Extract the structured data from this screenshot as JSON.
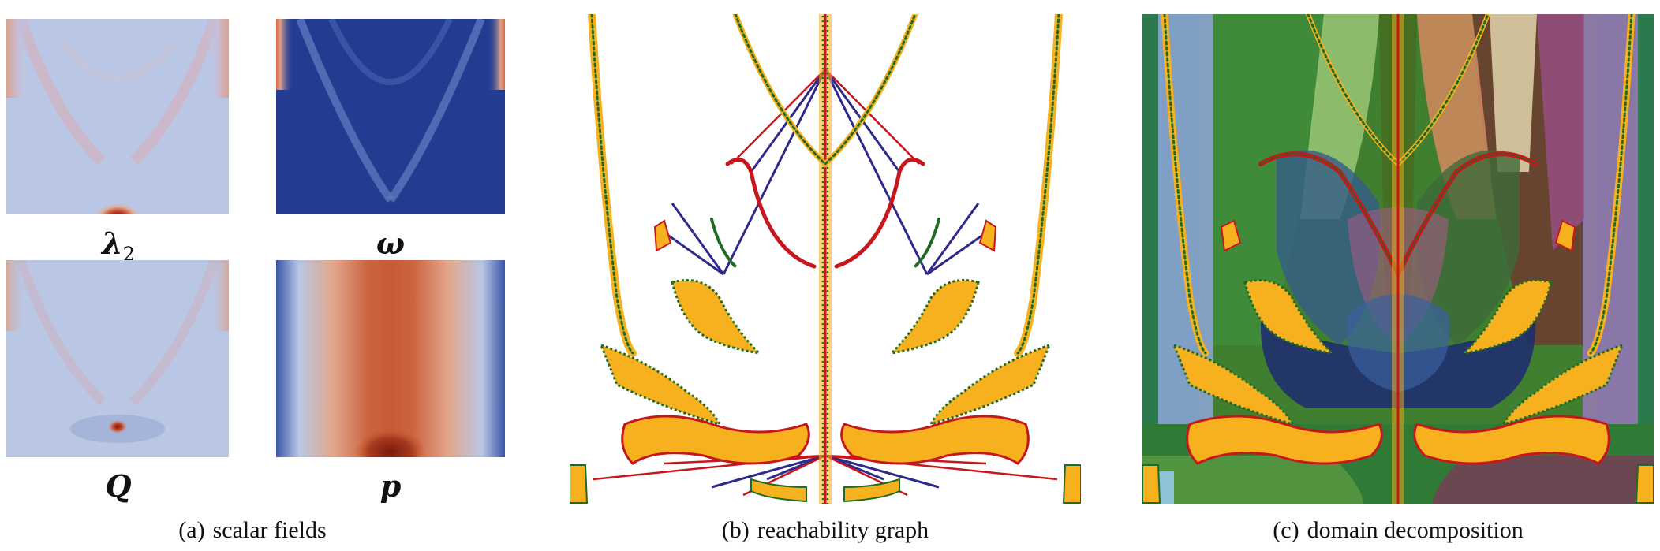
{
  "panels": {
    "a": {
      "tag": "(a)",
      "caption": "scalar fields",
      "fields": [
        {
          "symbol": "λ",
          "subscript": "2"
        },
        {
          "symbol": "ω",
          "subscript": ""
        },
        {
          "symbol": "Q",
          "subscript": ""
        },
        {
          "symbol": "p",
          "subscript": ""
        }
      ]
    },
    "b": {
      "tag": "(b)",
      "caption": "reachability graph"
    },
    "c": {
      "tag": "(c)",
      "caption": "domain decomposition"
    }
  },
  "colors": {
    "field_light_blue": "#b9c7e4",
    "field_dark_blue": "#233c92",
    "field_red": "#a52a15",
    "field_orange": "#d8703f",
    "region_orange": "#f7b01e",
    "boundary_green": "#1f6b22",
    "boundary_red": "#e0241b",
    "edge_blue": "#2d2a8c",
    "edge_red": "#c8161d"
  }
}
